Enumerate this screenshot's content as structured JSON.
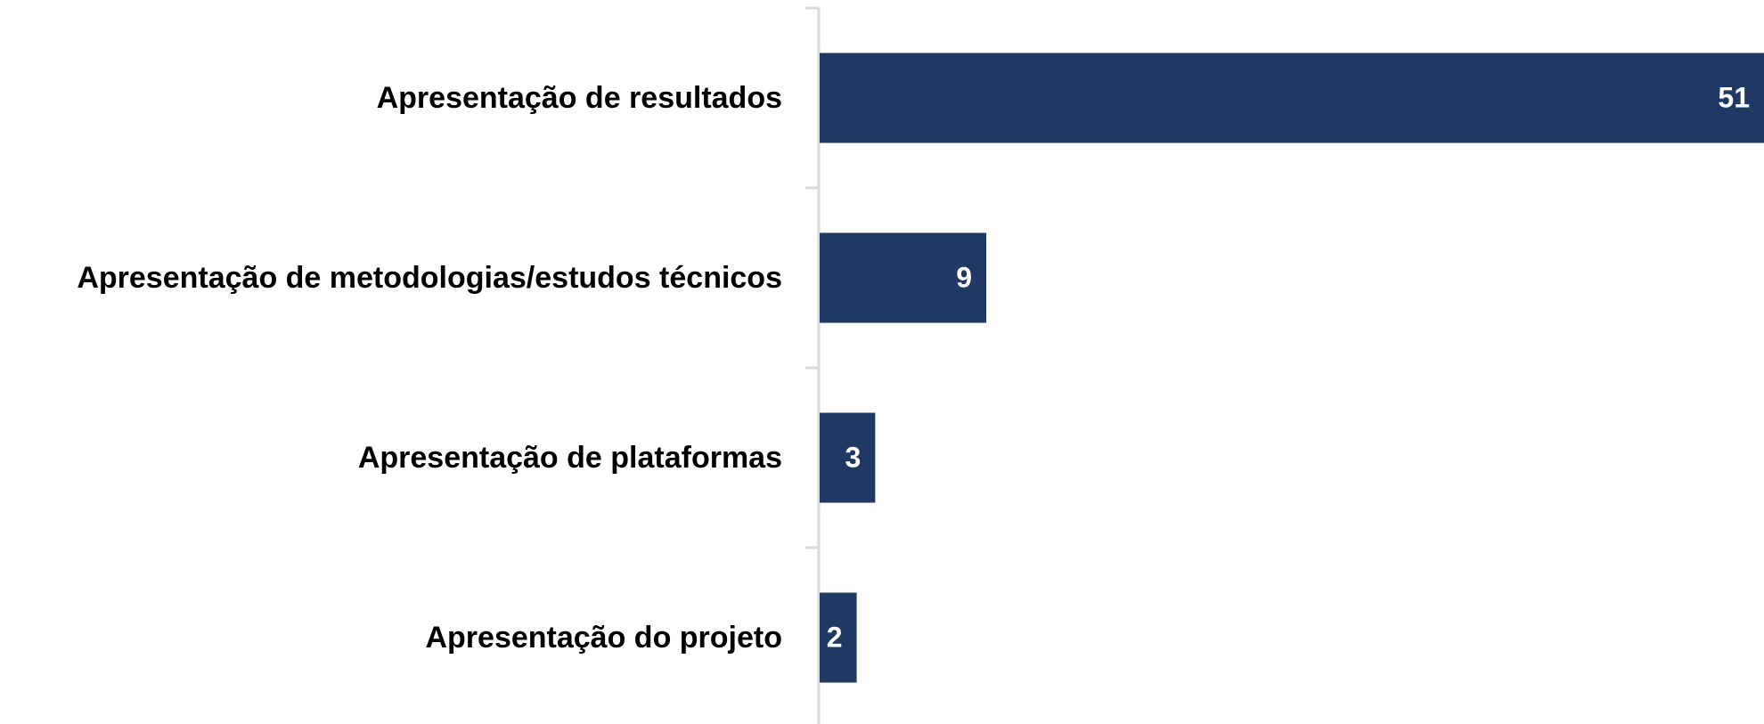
{
  "chart_data": {
    "type": "bar",
    "orientation": "horizontal",
    "categories": [
      "Apresentação de resultados",
      "Apresentação de metodologias/estudos técnicos",
      "Apresentação de plataformas",
      "Apresentação do projeto"
    ],
    "values": [
      51,
      9,
      3,
      2
    ],
    "color": "#203864",
    "xlim": [
      0,
      51
    ]
  }
}
